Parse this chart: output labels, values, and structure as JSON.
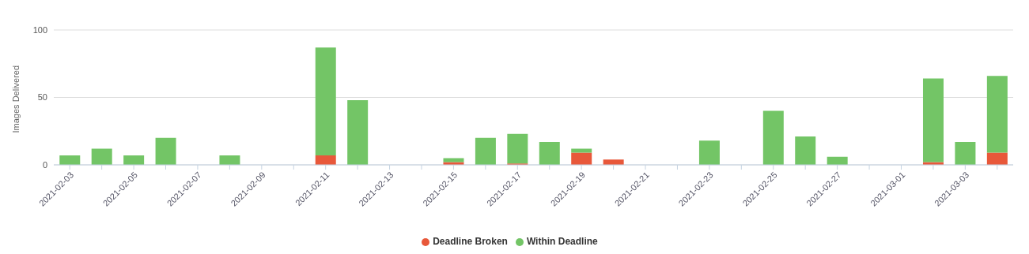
{
  "chart_data": {
    "type": "bar",
    "stacked": true,
    "ylabel": "Images Delivered",
    "categories": [
      "2021-02-03",
      null,
      "2021-02-05",
      null,
      "2021-02-07",
      null,
      "2021-02-09",
      null,
      "2021-02-11",
      null,
      "2021-02-13",
      null,
      "2021-02-15",
      null,
      "2021-02-17",
      null,
      "2021-02-19",
      null,
      "2021-02-21",
      null,
      "2021-02-23",
      null,
      "2021-02-25",
      null,
      "2021-02-27",
      null,
      "2021-03-01",
      null,
      "2021-03-03",
      null
    ],
    "series": [
      {
        "name": "Deadline Broken",
        "color": "#e8583a",
        "values": [
          0,
          0,
          0,
          0,
          0,
          0,
          0,
          0,
          7,
          0,
          0,
          0,
          2,
          0,
          1,
          0,
          9,
          4,
          0,
          0,
          0,
          0,
          0,
          0,
          0,
          0,
          0,
          2,
          0,
          9
        ]
      },
      {
        "name": "Within Deadline",
        "color": "#73c566",
        "values": [
          7,
          12,
          7,
          20,
          0,
          7,
          0,
          0,
          80,
          48,
          0,
          0,
          3,
          20,
          22,
          17,
          3,
          0,
          0,
          0,
          18,
          0,
          40,
          21,
          6,
          0,
          0,
          62,
          17,
          57
        ]
      }
    ],
    "ylim": [
      0,
      100
    ],
    "yticks": [
      0,
      50,
      100
    ],
    "grid": "y",
    "legend": "bottom"
  }
}
